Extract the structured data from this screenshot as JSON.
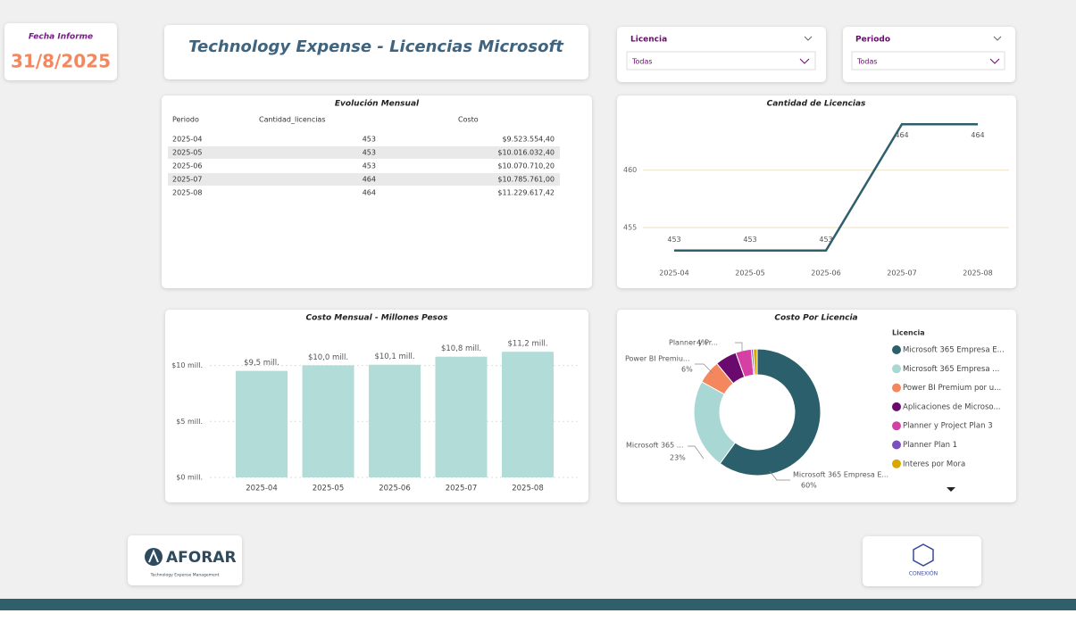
{
  "report": {
    "label": "Fecha Informe",
    "date": "31/8/2025"
  },
  "title": "Technology Expense - Licencias Microsoft",
  "filters": [
    {
      "label": "Licencia",
      "value": "Todas"
    },
    {
      "label": "Periodo",
      "value": "Todas"
    }
  ],
  "table": {
    "title": "Evolución Mensual",
    "columns": [
      "Periodo",
      "Cantidad_licencias",
      "Costo"
    ],
    "rows": [
      [
        "2025-04",
        "453",
        "$9.523.554,40"
      ],
      [
        "2025-05",
        "453",
        "$10.016.032,40"
      ],
      [
        "2025-06",
        "453",
        "$10.070.710,20"
      ],
      [
        "2025-07",
        "464",
        "$10.785.761,00"
      ],
      [
        "2025-08",
        "464",
        "$11.229.617,42"
      ]
    ]
  },
  "chart_data": [
    {
      "type": "line",
      "title": "Cantidad de Licencias",
      "categories": [
        "2025-04",
        "2025-05",
        "2025-06",
        "2025-07",
        "2025-08"
      ],
      "series": [
        {
          "color": "#2d5f6d",
          "values": [
            453,
            453,
            453,
            464,
            464
          ]
        }
      ],
      "ylim": [
        451.5,
        465.5
      ],
      "yticks": [
        455,
        460
      ],
      "grid": true
    },
    {
      "type": "bar",
      "title": "Costo Mensual - Millones Pesos",
      "categories": [
        "2025-04",
        "2025-05",
        "2025-06",
        "2025-07",
        "2025-08"
      ],
      "values": [
        9.52,
        10.02,
        10.07,
        10.79,
        11.23
      ],
      "value_labels": [
        "$9,5 mill.",
        "$10,0 mill.",
        "$10,1 mill.",
        "$10,8 mill.",
        "$11,2 mill."
      ],
      "color": "#b2dcd8",
      "ylim": [
        0,
        13
      ],
      "yticks": [
        {
          "value": 0,
          "label": "$0 mill."
        },
        {
          "value": 5,
          "label": "$5 mill."
        },
        {
          "value": 10,
          "label": "$10 mill."
        }
      ],
      "grid": true
    },
    {
      "type": "pie",
      "title": "Costo Por Licencia",
      "legend_title": "Licencia",
      "categories": [
        "Microsoft 365 Empresa E...",
        "Microsoft 365 Empresa ...",
        "Power BI Premium por u...",
        "Aplicaciones de Microso...",
        "Planner y Project Plan 3",
        "Planner Plan 1",
        "Interes por Mora"
      ],
      "values": [
        60,
        23,
        6,
        5.5,
        4,
        0.5,
        1
      ],
      "slice_labels": [
        "Microsoft 365 Empresa E...",
        "Microsoft 365 ...",
        "Power BI Premiu...",
        null,
        "Planner y Pr...",
        null,
        null
      ],
      "value_labels": [
        "60%",
        "23%",
        "6%",
        null,
        "4%",
        null,
        null
      ],
      "colors": [
        "#2b5f6b",
        "#a9d8d4",
        "#f4875e",
        "#6a0a6e",
        "#d63fa3",
        "#7b4fbf",
        "#d9a800"
      ],
      "legend": "right"
    }
  ],
  "logos": {
    "left": "AFORAR",
    "left_sub": "Technology Expense Management",
    "right": "CONEXIÓN"
  }
}
